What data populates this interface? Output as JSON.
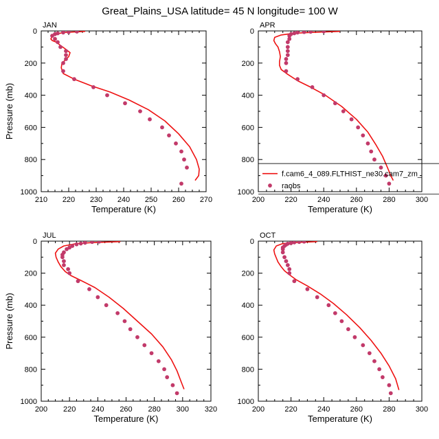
{
  "title": "Great_Plains_USA  latitude= 45 N longitude= 100 W",
  "colors": {
    "model_line": "#ee1111",
    "obs_marker": "#c23a6a"
  },
  "chart_data": [
    {
      "type": "line",
      "panel_label": "JAN",
      "xlabel": "Temperature (K)",
      "ylabel": "Pressure (mb)",
      "xlim": [
        210,
        270
      ],
      "ylim": [
        1000,
        0
      ],
      "xticks": [
        210,
        220,
        230,
        240,
        250,
        260,
        270
      ],
      "yticks": [
        0,
        200,
        400,
        600,
        800,
        1000
      ],
      "series": [
        {
          "name": "f.cam6_4_089.FLTHIST_ne30.cam7_zm_",
          "kind": "line",
          "points": [
            [
              226,
              3
            ],
            [
              218,
              10
            ],
            [
              215,
              22
            ],
            [
              214,
              35
            ],
            [
              213.5,
              50
            ],
            [
              214,
              60
            ],
            [
              215.5,
              70
            ],
            [
              217,
              90
            ],
            [
              219,
              115
            ],
            [
              220.5,
              135
            ],
            [
              220,
              160
            ],
            [
              218.5,
              185
            ],
            [
              217.5,
              205
            ],
            [
              217.3,
              230
            ],
            [
              218,
              265
            ],
            [
              222,
              300
            ],
            [
              228,
              340
            ],
            [
              235,
              380
            ],
            [
              242,
              430
            ],
            [
              249,
              490
            ],
            [
              255,
              560
            ],
            [
              260,
              640
            ],
            [
              264,
              720
            ],
            [
              266.5,
              800
            ],
            [
              267.5,
              860
            ],
            [
              267.3,
              900
            ],
            [
              266,
              930
            ]
          ]
        },
        {
          "name": "raobs",
          "kind": "points",
          "points": [
            [
              223,
              4
            ],
            [
              220,
              7
            ],
            [
              218,
              10
            ],
            [
              216,
              15
            ],
            [
              215,
              20
            ],
            [
              214,
              30
            ],
            [
              215,
              50
            ],
            [
              216,
              70
            ],
            [
              217,
              100
            ],
            [
              219,
              125
            ],
            [
              219,
              150
            ],
            [
              219,
              175
            ],
            [
              218,
              200
            ],
            [
              218,
              250
            ],
            [
              222,
              300
            ],
            [
              229,
              350
            ],
            [
              234,
              400
            ],
            [
              240.5,
              450
            ],
            [
              246,
              500
            ],
            [
              249.5,
              550
            ],
            [
              254,
              600
            ],
            [
              256.5,
              650
            ],
            [
              259,
              700
            ],
            [
              261,
              750
            ],
            [
              262,
              800
            ],
            [
              263,
              850
            ],
            [
              261,
              950
            ]
          ]
        }
      ]
    },
    {
      "type": "line",
      "panel_label": "APR",
      "xlabel": "Temperature (K)",
      "ylabel": "",
      "xlim": [
        200,
        300
      ],
      "ylim": [
        1000,
        0
      ],
      "xticks": [
        200,
        220,
        240,
        260,
        280,
        300
      ],
      "yticks": [
        0,
        200,
        400,
        600,
        800,
        1000
      ],
      "legend": {
        "placement": "bottom-right",
        "entries": [
          "f.cam6_4_089.FLTHIST_ne30.cam7_zm_",
          "raobs"
        ]
      },
      "series": [
        {
          "name": "f.cam6_4_089.FLTHIST_ne30.cam7_zm_",
          "kind": "line",
          "points": [
            [
              250,
              3
            ],
            [
              235,
              8
            ],
            [
              222,
              14
            ],
            [
              214,
              25
            ],
            [
              210,
              40
            ],
            [
              209.5,
              60
            ],
            [
              210.5,
              80
            ],
            [
              212,
              100
            ],
            [
              213,
              130
            ],
            [
              213.5,
              160
            ],
            [
              213,
              190
            ],
            [
              213,
              215
            ],
            [
              214,
              240
            ],
            [
              218,
              270
            ],
            [
              224,
              310
            ],
            [
              232,
              350
            ],
            [
              241,
              400
            ],
            [
              251,
              470
            ],
            [
              260,
              550
            ],
            [
              267,
              630
            ],
            [
              272,
              710
            ],
            [
              276,
              780
            ],
            [
              279,
              850
            ],
            [
              281,
              900
            ],
            [
              282.5,
              930
            ]
          ]
        },
        {
          "name": "raobs",
          "kind": "points",
          "points": [
            [
              240,
              3
            ],
            [
              232,
              5
            ],
            [
              228,
              7
            ],
            [
              224,
              10
            ],
            [
              222,
              15
            ],
            [
              220,
              20
            ],
            [
              219,
              30
            ],
            [
              219,
              50
            ],
            [
              218,
              70
            ],
            [
              218,
              100
            ],
            [
              218,
              125
            ],
            [
              218,
              150
            ],
            [
              217,
              175
            ],
            [
              217,
              200
            ],
            [
              217,
              250
            ],
            [
              224,
              300
            ],
            [
              233,
              350
            ],
            [
              240,
              400
            ],
            [
              247,
              450
            ],
            [
              252,
              500
            ],
            [
              257,
              550
            ],
            [
              261,
              600
            ],
            [
              264,
              650
            ],
            [
              267,
              700
            ],
            [
              269,
              750
            ],
            [
              271,
              800
            ],
            [
              275,
              850
            ],
            [
              278,
              900
            ],
            [
              280,
              950
            ]
          ]
        }
      ]
    },
    {
      "type": "line",
      "panel_label": "JUL",
      "xlabel": "Temperature (K)",
      "ylabel": "Pressure (mb)",
      "xlim": [
        200,
        320
      ],
      "ylim": [
        1000,
        0
      ],
      "xticks": [
        200,
        220,
        240,
        260,
        280,
        300,
        320
      ],
      "yticks": [
        0,
        200,
        400,
        600,
        800,
        1000
      ],
      "series": [
        {
          "name": "f.cam6_4_089.FLTHIST_ne30.cam7_zm_",
          "kind": "line",
          "points": [
            [
              256,
              3
            ],
            [
              238,
              8
            ],
            [
              225,
              15
            ],
            [
              216,
              30
            ],
            [
              212,
              50
            ],
            [
              210,
              75
            ],
            [
              210.5,
              100
            ],
            [
              212,
              130
            ],
            [
              214,
              160
            ],
            [
              217,
              190
            ],
            [
              221,
              215
            ],
            [
              228,
              245
            ],
            [
              238,
              290
            ],
            [
              248,
              350
            ],
            [
              258,
              420
            ],
            [
              268,
              500
            ],
            [
              278,
              580
            ],
            [
              286,
              660
            ],
            [
              292,
              740
            ],
            [
              296,
              810
            ],
            [
              299,
              880
            ],
            [
              301,
              925
            ]
          ]
        },
        {
          "name": "raobs",
          "kind": "points",
          "points": [
            [
              241,
              3
            ],
            [
              236,
              5
            ],
            [
              231,
              10
            ],
            [
              228,
              15
            ],
            [
              225,
              20
            ],
            [
              222,
              30
            ],
            [
              220,
              40
            ],
            [
              218,
              50
            ],
            [
              216,
              70
            ],
            [
              215,
              85
            ],
            [
              215,
              100
            ],
            [
              216,
              125
            ],
            [
              216,
              150
            ],
            [
              219,
              175
            ],
            [
              220,
              200
            ],
            [
              226,
              250
            ],
            [
              234,
              300
            ],
            [
              240,
              350
            ],
            [
              246,
              400
            ],
            [
              254,
              450
            ],
            [
              259,
              500
            ],
            [
              263,
              550
            ],
            [
              268,
              600
            ],
            [
              273,
              650
            ],
            [
              278,
              700
            ],
            [
              283,
              750
            ],
            [
              287,
              800
            ],
            [
              289,
              850
            ],
            [
              293,
              900
            ],
            [
              296,
              950
            ]
          ]
        }
      ]
    },
    {
      "type": "line",
      "panel_label": "OCT",
      "xlabel": "Temperature (K)",
      "ylabel": "",
      "xlim": [
        200,
        300
      ],
      "ylim": [
        1000,
        0
      ],
      "xticks": [
        200,
        220,
        240,
        260,
        280,
        300
      ],
      "yticks": [
        0,
        200,
        400,
        600,
        800,
        1000
      ],
      "series": [
        {
          "name": "f.cam6_4_089.FLTHIST_ne30.cam7_zm_",
          "kind": "line",
          "points": [
            [
              236,
              3
            ],
            [
              223,
              8
            ],
            [
              215,
              15
            ],
            [
              211,
              30
            ],
            [
              209.5,
              55
            ],
            [
              210,
              80
            ],
            [
              211,
              105
            ],
            [
              212,
              130
            ],
            [
              214,
              160
            ],
            [
              216,
              185
            ],
            [
              219,
              210
            ],
            [
              223,
              240
            ],
            [
              230,
              280
            ],
            [
              238,
              330
            ],
            [
              246,
              390
            ],
            [
              254,
              460
            ],
            [
              262,
              540
            ],
            [
              269,
              620
            ],
            [
              275,
              700
            ],
            [
              280,
              780
            ],
            [
              284,
              860
            ],
            [
              286,
              930
            ]
          ]
        },
        {
          "name": "raobs",
          "kind": "points",
          "points": [
            [
              228,
              3
            ],
            [
              225,
              5
            ],
            [
              222,
              8
            ],
            [
              220,
              12
            ],
            [
              218,
              16
            ],
            [
              217,
              22
            ],
            [
              216,
              30
            ],
            [
              215,
              40
            ],
            [
              215,
              50
            ],
            [
              215,
              70
            ],
            [
              216,
              100
            ],
            [
              217,
              125
            ],
            [
              218,
              150
            ],
            [
              219,
              175
            ],
            [
              219,
              200
            ],
            [
              222,
              250
            ],
            [
              230,
              300
            ],
            [
              236,
              350
            ],
            [
              243,
              400
            ],
            [
              247,
              450
            ],
            [
              251,
              500
            ],
            [
              255,
              550
            ],
            [
              259,
              600
            ],
            [
              264,
              650
            ],
            [
              268,
              700
            ],
            [
              271,
              750
            ],
            [
              274,
              800
            ],
            [
              276,
              850
            ],
            [
              280,
              900
            ],
            [
              281,
              950
            ]
          ]
        }
      ]
    }
  ]
}
